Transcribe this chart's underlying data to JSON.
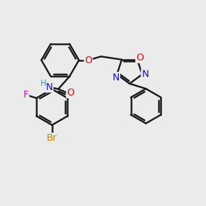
{
  "bg_color": "#ebebeb",
  "bond_color": "#1a1a1a",
  "bond_width": 1.8,
  "figsize": [
    3.0,
    3.0
  ],
  "dpi": 100,
  "atom_colors": {
    "N": "#1010cc",
    "O": "#cc1010",
    "F": "#bb22bb",
    "Br": "#cc8800",
    "H": "#448899",
    "C": "#1a1a1a"
  },
  "font_size": 10,
  "font_size_small": 8.5
}
